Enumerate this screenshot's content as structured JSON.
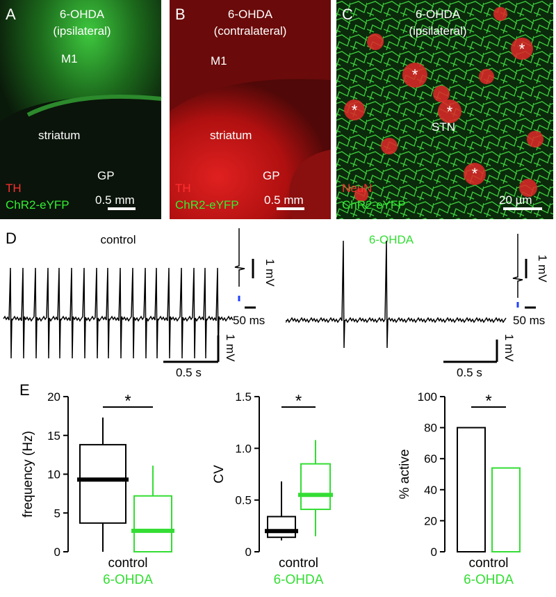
{
  "panels": [
    {
      "letter": "A",
      "title": "6-OHDA",
      "subtitle": "(ipsilateral)",
      "labels": [
        "M1",
        "striatum",
        "GP"
      ],
      "stain1": "TH",
      "stain2": "ChR2-eYFP",
      "scale": "0.5 mm"
    },
    {
      "letter": "B",
      "title": "6-OHDA",
      "subtitle": "(contralateral)",
      "labels": [
        "M1",
        "striatum",
        "GP"
      ],
      "stain1": "TH",
      "stain2": "ChR2-eYFP",
      "scale": "0.5 mm"
    },
    {
      "letter": "C",
      "title": "6-OHDA",
      "subtitle": "(ipsilateral)",
      "labels": [
        "STN"
      ],
      "markers": [
        "*",
        "*",
        "*",
        "*",
        "*"
      ],
      "stain1": "NeuN",
      "stain2": "ChR2-eYFP",
      "scale": "20 µm"
    }
  ],
  "traces": {
    "letter": "D",
    "groups": [
      {
        "title": "control",
        "inset_v": "1 mV",
        "inset_t": "50 ms",
        "scale_v": "1 mV",
        "scale_t": "0.5 s"
      },
      {
        "title": "6-OHDA",
        "inset_v": "1 mV",
        "inset_t": "50 ms",
        "scale_v": "1 mV",
        "scale_t": "0.5 s"
      }
    ]
  },
  "panel_e": {
    "letter": "E"
  },
  "chart_data": [
    {
      "type": "box",
      "ylabel": "frequency (Hz)",
      "categories": [
        "control",
        "6-OHDA"
      ],
      "significance": "*",
      "boxes": [
        {
          "color": "#000000",
          "min": 0,
          "q1": 3.7,
          "median": 9.3,
          "q3": 13.8,
          "max": 17.3
        },
        {
          "color": "#33dd33",
          "min": 0,
          "q1": 0,
          "median": 2.7,
          "q3": 7.2,
          "max": 11.1
        }
      ],
      "ylim": [
        0,
        20
      ],
      "yticks": [
        0,
        5,
        10,
        15,
        20
      ]
    },
    {
      "type": "box",
      "ylabel": "CV",
      "categories": [
        "control",
        "6-OHDA"
      ],
      "significance": "*",
      "boxes": [
        {
          "color": "#000000",
          "min": 0.11,
          "q1": 0.14,
          "median": 0.2,
          "q3": 0.34,
          "max": 0.68
        },
        {
          "color": "#33dd33",
          "min": 0.15,
          "q1": 0.41,
          "median": 0.55,
          "q3": 0.85,
          "max": 1.08
        }
      ],
      "ylim": [
        0,
        1.5
      ],
      "yticks": [
        0,
        0.5,
        {
          "value": 1,
          "label": "1.0"
        },
        1.5
      ]
    },
    {
      "type": "bar",
      "ylabel": "% active",
      "categories": [
        "control",
        "6-OHDA"
      ],
      "significance": "*",
      "values": [
        80,
        54
      ],
      "colors": [
        "#000000",
        "#33dd33"
      ],
      "ylim": [
        0,
        100
      ],
      "yticks": [
        0,
        20,
        40,
        60,
        80,
        100
      ]
    }
  ]
}
